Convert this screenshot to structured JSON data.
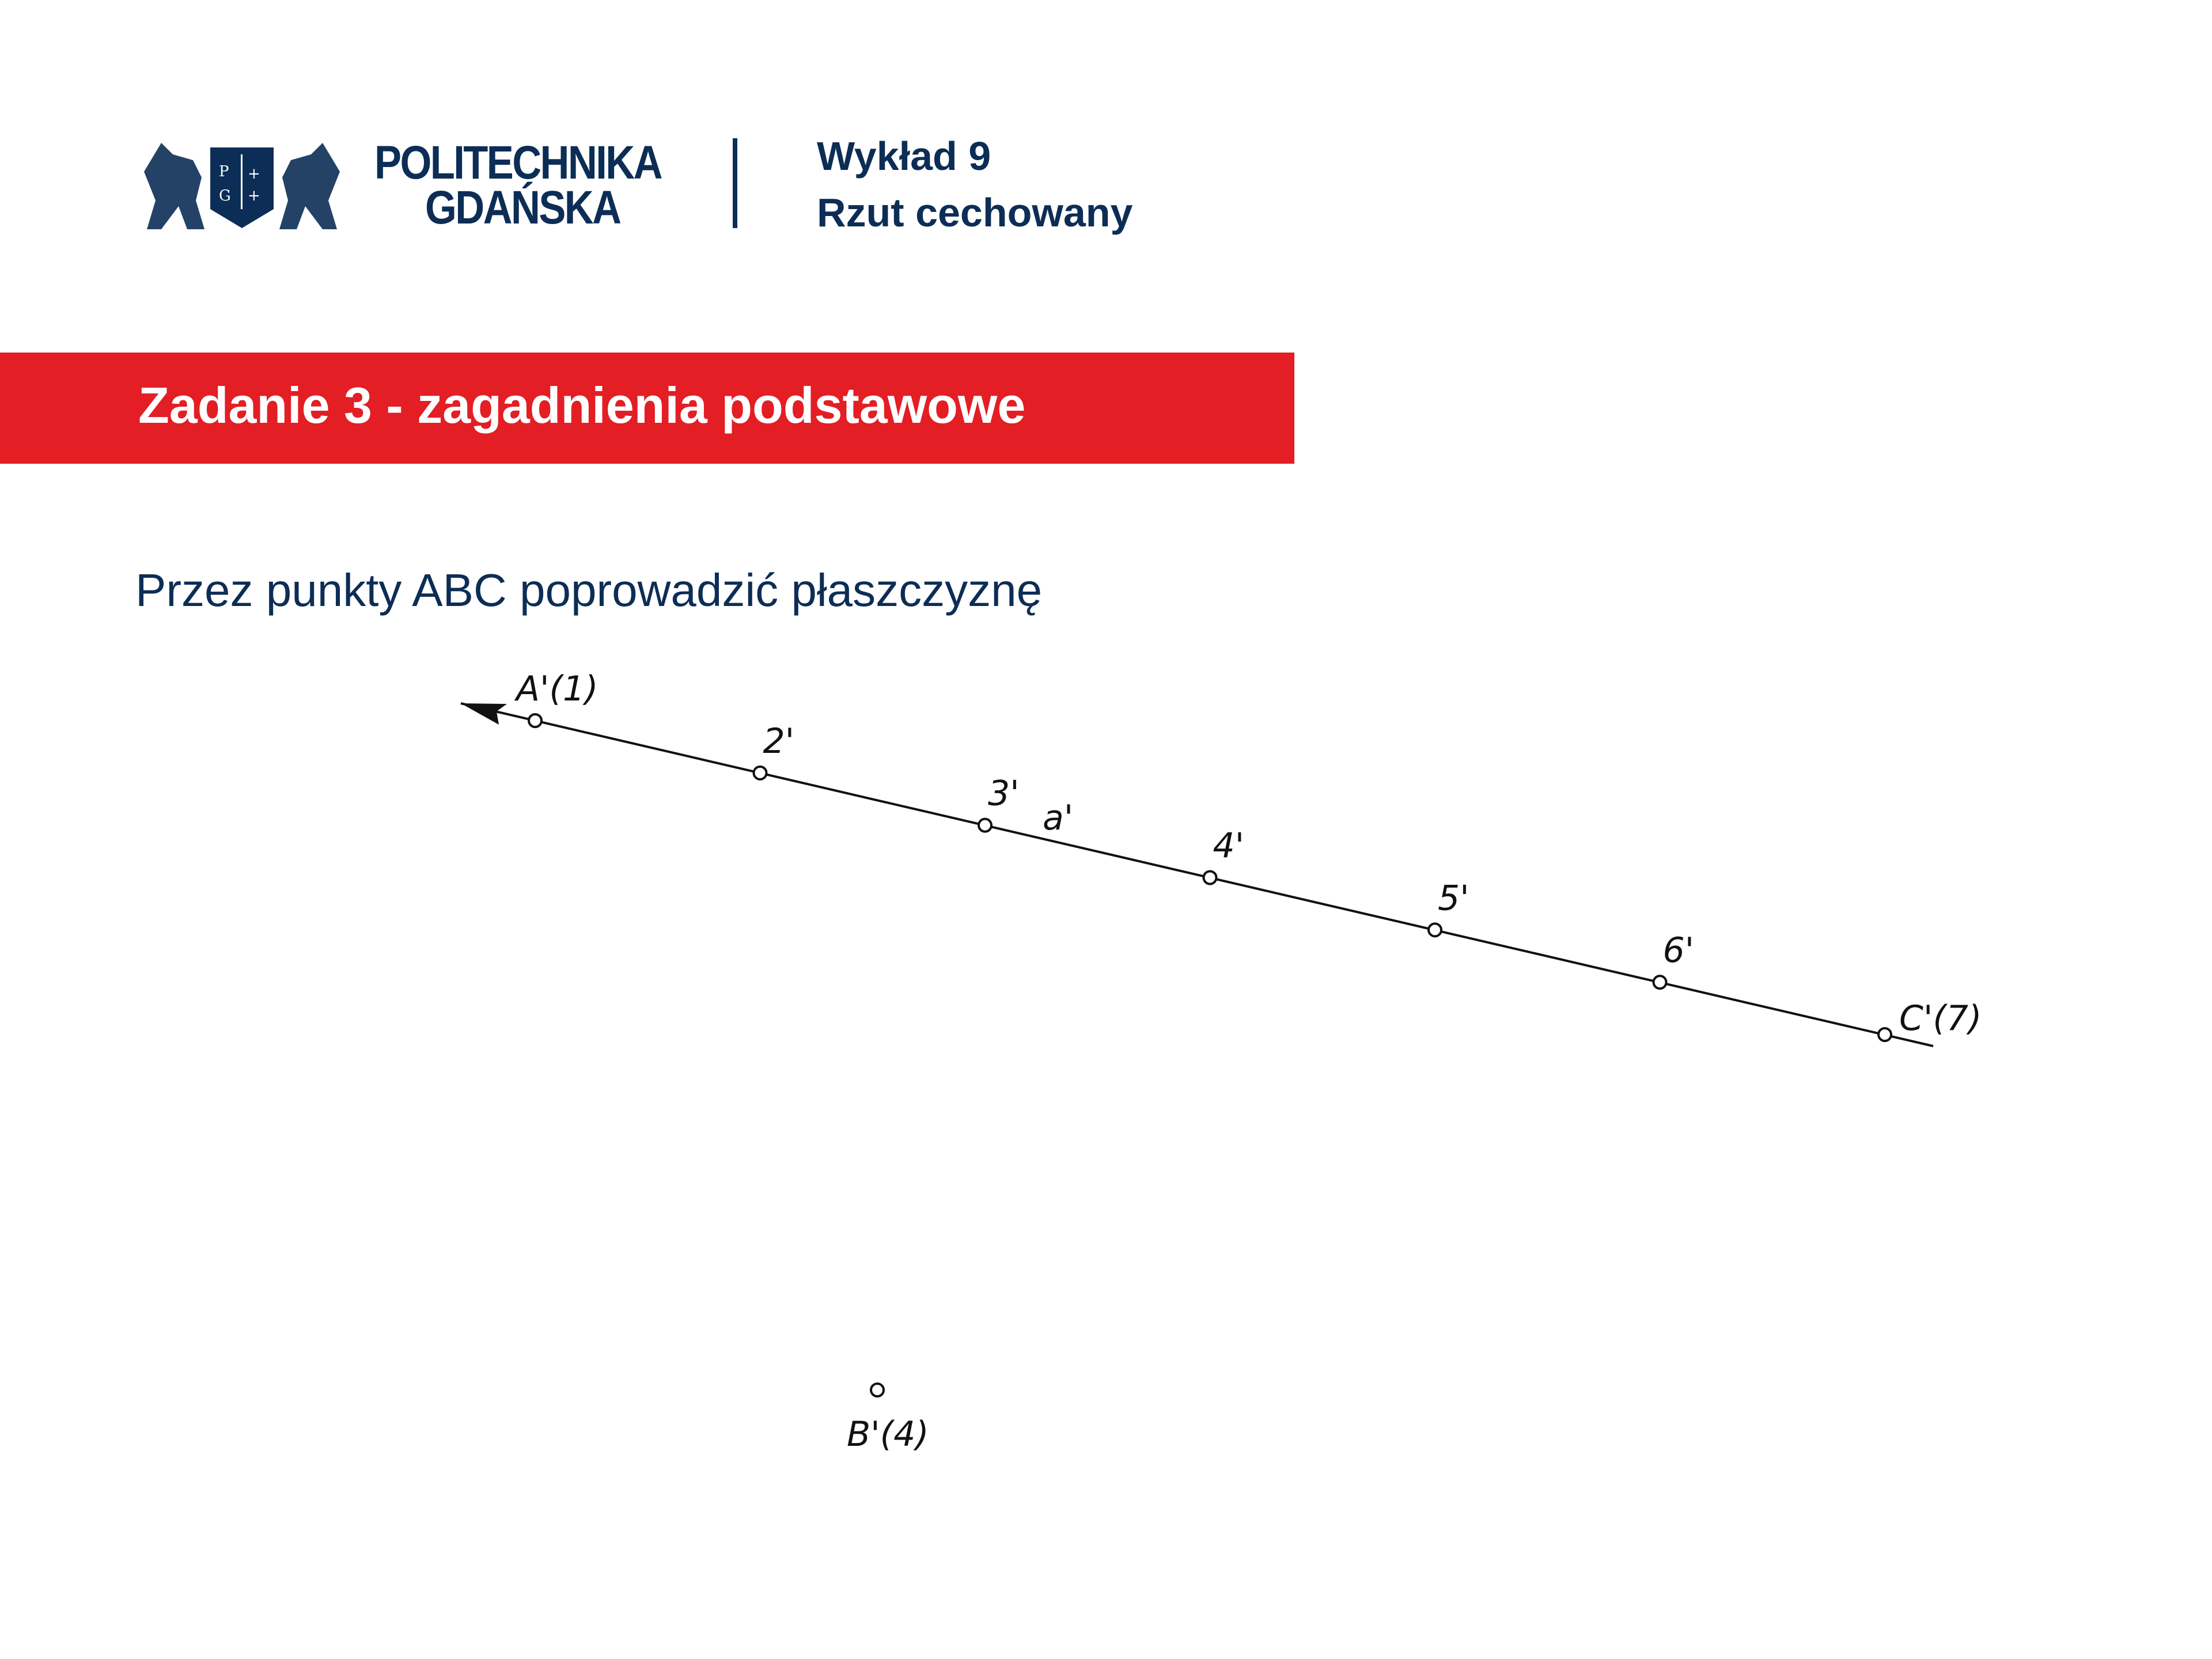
{
  "header": {
    "logo_text": [
      "POLITECHNIKA",
      "GDAŃSKA"
    ],
    "logo_emblem_letters": "PG",
    "lecture_number": "Wykład 9",
    "lecture_title": "Rzut cechowany"
  },
  "banner": {
    "title": "Zadanie 3 - zagadnienia podstawowe"
  },
  "instruction": "Przez punkty ABC poprowadzić płaszczyznę",
  "drawing": {
    "line_label": "a'",
    "line_points": [
      "A'(1)",
      "2'",
      "3'",
      "4'",
      "5'",
      "6'",
      "C'(7)"
    ],
    "point_b": "B'(4)"
  },
  "colors": {
    "brand_navy": "#0c2d55",
    "banner_red": "#e31e24"
  }
}
